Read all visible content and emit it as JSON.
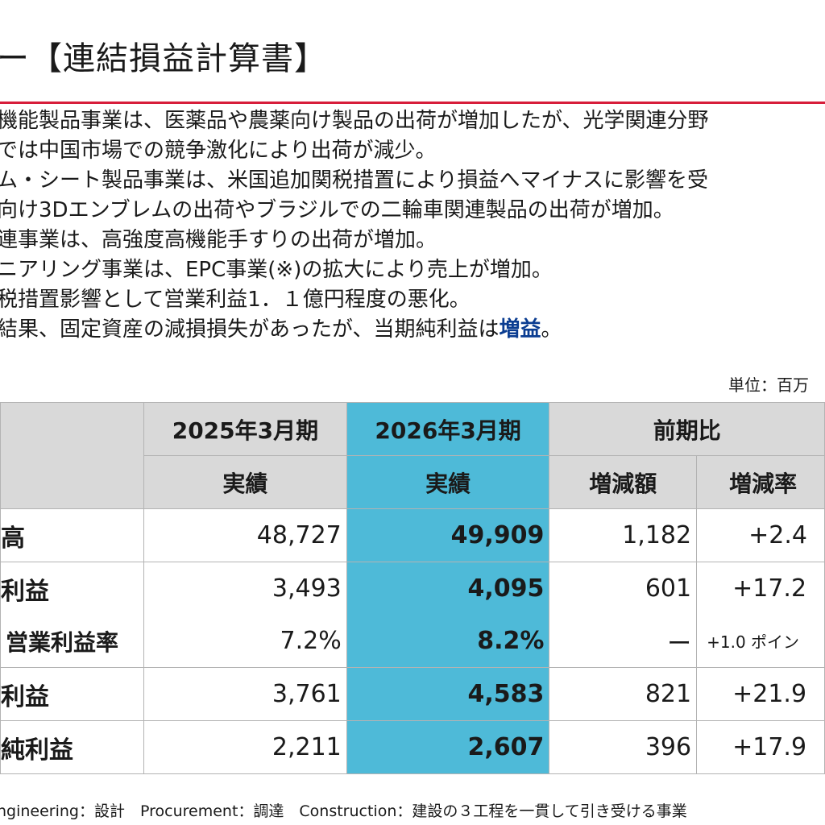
{
  "title": "ー【連結損益計算書】",
  "bullets": [
    "機能製品事業は、医薬品や農薬向け製品の出荷が増加したが、光学関連分野",
    "では中国市場での競争激化により出荷が減少。",
    "ム・シート製品事業は、米国追加関税措置により損益へマイナスに影響を受",
    "向け3Dエンブレムの出荷やブラジルでの二輪車関連製品の出荷が増加。",
    "連事業は、高強度高機能手すりの出荷が増加。",
    "ニアリング事業は、EPC事業(※)の拡大により売上が増加。",
    "税措置影響として営業利益1．１億円程度の悪化。"
  ],
  "last_bullet": {
    "prefix": "結果、固定資産の減損損失があったが、当期純利益は",
    "highlight": "増益",
    "suffix": "。"
  },
  "unit_label": "単位：百万",
  "table": {
    "headers": {
      "prev_period": "2025年3月期",
      "cur_period": "2026年3月期",
      "compare": "前期比",
      "prev_actual": "実績",
      "cur_actual": "実績",
      "change_amount": "増減額",
      "change_rate": "増減率"
    },
    "rows": [
      {
        "label": "高",
        "prev": "48,727",
        "cur": "49,909",
        "diff": "1,182",
        "rate": "+2.4"
      },
      {
        "label": "利益",
        "prev": "3,493",
        "cur": "4,095",
        "diff": "601",
        "rate": "+17.2"
      },
      {
        "label": "営業利益率",
        "prev": "7.2%",
        "cur": "8.2%",
        "diff": "ー",
        "rate": "+1.0 ポイン"
      },
      {
        "label": "利益",
        "prev": "3,761",
        "cur": "4,583",
        "diff": "821",
        "rate": "+21.9"
      },
      {
        "label": "純利益",
        "prev": "2,211",
        "cur": "2,607",
        "diff": "396",
        "rate": "+17.9"
      }
    ]
  },
  "footnote": "ngineering：設計　Procurement：調達　Construction：建設の３工程を一貫して引き受ける事業",
  "colors": {
    "accent_line": "#d71d3a",
    "current_column": "#4ebad8",
    "header_gray": "#d9d9d9",
    "highlight_text": "#0b3d91"
  }
}
